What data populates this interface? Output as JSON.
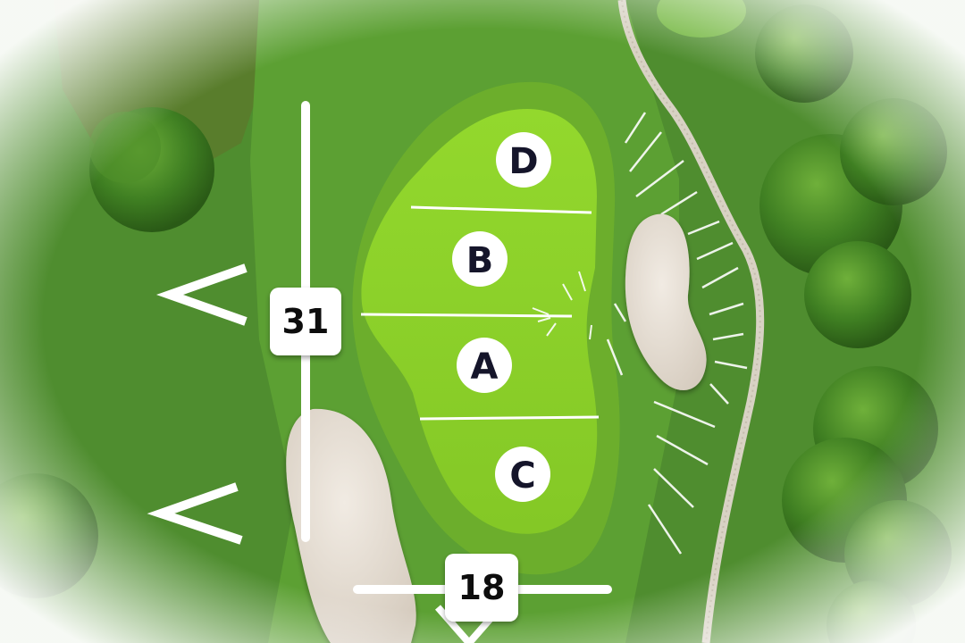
{
  "hole_map": {
    "colors": {
      "rough": "#4f8d2f",
      "fairway": "#5fa235",
      "green_fringe": "#73b52d",
      "green": "#8cd12a",
      "sand": "#e6ddd2",
      "path": "#d8d2c4",
      "marker_line": "#ffffff",
      "label_text": "#15152a"
    },
    "pin_positions": [
      {
        "letter": "D"
      },
      {
        "letter": "B"
      },
      {
        "letter": "A"
      },
      {
        "letter": "C"
      }
    ],
    "distance_markers": [
      {
        "label": "31"
      },
      {
        "label": "18"
      }
    ],
    "icons": [
      "direction-chevron-icon",
      "tree-icon",
      "bunker-icon",
      "cart-path-icon",
      "slope-hatch-icon"
    ]
  }
}
